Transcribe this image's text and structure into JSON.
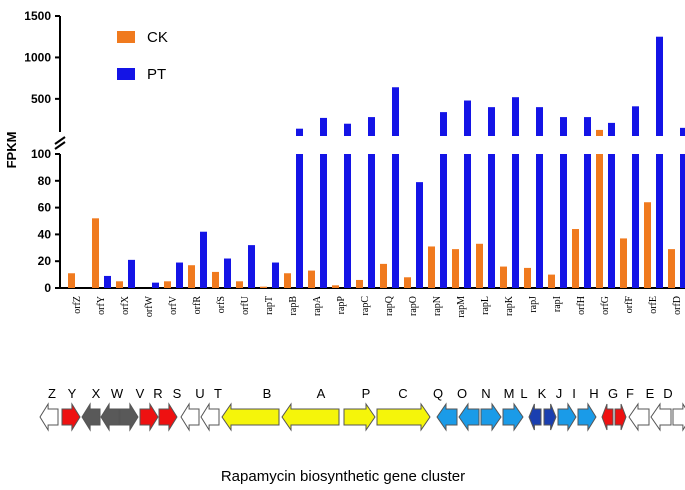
{
  "chart_data": {
    "type": "bar",
    "ylabel": "FPKM",
    "y_axis_break": {
      "lower_range": [
        0,
        100
      ],
      "upper_range": [
        100,
        1500
      ]
    },
    "lower_ticks": [
      0,
      20,
      40,
      60,
      80,
      100
    ],
    "upper_ticks": [
      500,
      1000,
      1500
    ],
    "categories": [
      "orfZ",
      "orfY",
      "orfX",
      "orfW",
      "orfV",
      "orfR",
      "orfS",
      "orfU",
      "rapT",
      "rapB",
      "rapA",
      "rapP",
      "rapC",
      "rapQ",
      "rapO",
      "rapN",
      "rapM",
      "rapL",
      "rapK",
      "rapJ",
      "rapI",
      "orfH",
      "orfG",
      "orfF",
      "orfE",
      "orfD"
    ],
    "legend_position": "top-left",
    "series": [
      {
        "name": "CK",
        "color": "#f07a1e",
        "values": [
          11,
          52,
          5,
          0,
          5,
          17,
          12,
          5,
          1,
          11,
          13,
          2,
          6,
          18,
          8,
          31,
          29,
          33,
          16,
          15,
          10,
          44,
          125,
          37,
          64,
          29
        ]
      },
      {
        "name": "PT",
        "color": "#1414e6",
        "values": [
          0,
          9,
          21,
          4,
          19,
          42,
          22,
          32,
          19,
          140,
          270,
          200,
          280,
          640,
          79,
          340,
          480,
          400,
          520,
          400,
          280,
          280,
          210,
          410,
          1250,
          150
        ]
      }
    ]
  },
  "gene_cluster": {
    "caption": "Rapamycin biosynthetic gene cluster",
    "genes": [
      {
        "letter": "Z",
        "color": "#ffffff",
        "dir": "left"
      },
      {
        "letter": "Y",
        "color": "#ee1111",
        "dir": "right"
      },
      {
        "letter": "X",
        "color": "#595959",
        "dir": "left"
      },
      {
        "letter": "W",
        "color": "#595959",
        "dir": "left"
      },
      {
        "letter": "V",
        "color": "#595959",
        "dir": "right"
      },
      {
        "letter": "R",
        "color": "#ee1111",
        "dir": "right"
      },
      {
        "letter": "S",
        "color": "#ee1111",
        "dir": "right"
      },
      {
        "letter": "U",
        "color": "#ffffff",
        "dir": "left"
      },
      {
        "letter": "T",
        "color": "#ffffff",
        "dir": "left"
      },
      {
        "letter": "B",
        "color": "#f5f50a",
        "dir": "left"
      },
      {
        "letter": "A",
        "color": "#f5f50a",
        "dir": "left"
      },
      {
        "letter": "P",
        "color": "#f5f50a",
        "dir": "right"
      },
      {
        "letter": "C",
        "color": "#f5f50a",
        "dir": "right"
      },
      {
        "letter": "Q",
        "color": "#1a9be8",
        "dir": "left"
      },
      {
        "letter": "O",
        "color": "#1a9be8",
        "dir": "left"
      },
      {
        "letter": "N",
        "color": "#1a9be8",
        "dir": "right"
      },
      {
        "letter": "M",
        "color": "#1a9be8",
        "dir": "right"
      },
      {
        "letter": "L",
        "color": "#1a3fb0",
        "dir": "left"
      },
      {
        "letter": "K",
        "color": "#1a3fb0",
        "dir": "right"
      },
      {
        "letter": "J",
        "color": "#1a9be8",
        "dir": "right"
      },
      {
        "letter": "I",
        "color": "#1a9be8",
        "dir": "right"
      },
      {
        "letter": "H",
        "color": "#ee1111",
        "dir": "left"
      },
      {
        "letter": "G",
        "color": "#ee1111",
        "dir": "right"
      },
      {
        "letter": "F",
        "color": "#ffffff",
        "dir": "left"
      },
      {
        "letter": "E",
        "color": "#ffffff",
        "dir": "left"
      },
      {
        "letter": "D",
        "color": "#ffffff",
        "dir": "right"
      }
    ]
  }
}
